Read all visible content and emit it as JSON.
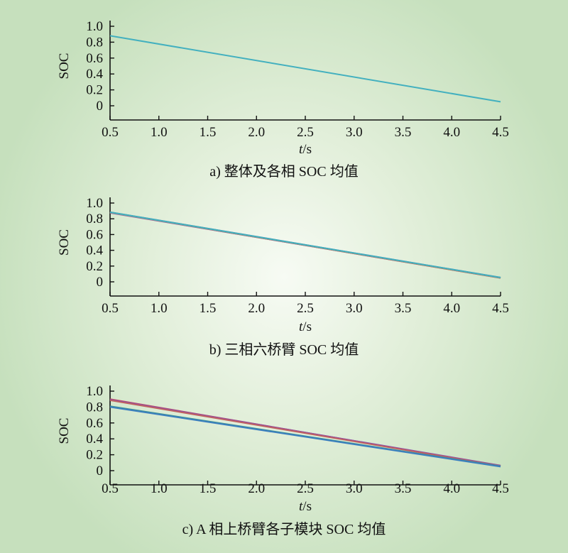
{
  "chart_data": [
    {
      "type": "line",
      "caption": "a) 整体及各相 SOC 均值",
      "xlabel_italic": "t",
      "xlabel_unit": "/s",
      "ylabel": "SOC",
      "xlim": [
        0.5,
        4.5
      ],
      "ylim": [
        0,
        1.0
      ],
      "x_ticks": [
        "0.5",
        "1.0",
        "1.5",
        "2.0",
        "2.5",
        "3.0",
        "3.5",
        "4.0",
        "4.5"
      ],
      "y_ticks": [
        "0",
        "0.2",
        "0.4",
        "0.6",
        "0.8",
        "1.0"
      ],
      "series": [
        {
          "color": "#43b0bf",
          "x": [
            0.5,
            4.5
          ],
          "y": [
            0.88,
            0.05
          ]
        }
      ]
    },
    {
      "type": "line",
      "caption": "b) 三相六桥臂 SOC 均值",
      "xlabel_italic": "t",
      "xlabel_unit": "/s",
      "ylabel": "SOC",
      "xlim": [
        0.5,
        4.5
      ],
      "ylim": [
        0,
        1.0
      ],
      "x_ticks": [
        "0.5",
        "1.0",
        "1.5",
        "2.0",
        "2.5",
        "3.0",
        "3.5",
        "4.0",
        "4.5"
      ],
      "y_ticks": [
        "0",
        "0.2",
        "0.4",
        "0.6",
        "0.8",
        "1.0"
      ],
      "series": [
        {
          "color": "#3c7fbf",
          "x": [
            0.5,
            4.5
          ],
          "y": [
            0.885,
            0.055
          ]
        },
        {
          "color": "#4aa05a",
          "x": [
            0.5,
            4.5
          ],
          "y": [
            0.882,
            0.052
          ]
        },
        {
          "color": "#c04848",
          "x": [
            0.5,
            4.5
          ],
          "y": [
            0.878,
            0.048
          ]
        },
        {
          "color": "#9a5fb0",
          "x": [
            0.5,
            4.5
          ],
          "y": [
            0.875,
            0.05
          ]
        },
        {
          "color": "#c98a3a",
          "x": [
            0.5,
            4.5
          ],
          "y": [
            0.88,
            0.05
          ]
        },
        {
          "color": "#43b0bf",
          "x": [
            0.5,
            4.5
          ],
          "y": [
            0.883,
            0.053
          ]
        }
      ]
    },
    {
      "type": "line",
      "caption": "c) A 相上桥臂各子模块 SOC 均值",
      "xlabel_italic": "t",
      "xlabel_unit": "/s",
      "ylabel": "SOC",
      "xlim": [
        0.5,
        4.5
      ],
      "ylim": [
        0,
        1.0
      ],
      "x_ticks": [
        "0.5",
        "1.0",
        "1.5",
        "2.0",
        "2.5",
        "3.0",
        "3.5",
        "4.0",
        "4.5"
      ],
      "y_ticks": [
        "0",
        "0.2",
        "0.4",
        "0.6",
        "0.8",
        "1.0"
      ],
      "series": [
        {
          "color": "#d84848",
          "x": [
            0.5,
            4.5
          ],
          "y": [
            0.9,
            0.06
          ]
        },
        {
          "color": "#8a4fa8",
          "x": [
            0.5,
            4.5
          ],
          "y": [
            0.895,
            0.065
          ]
        },
        {
          "color": "#c06060",
          "x": [
            0.5,
            4.5
          ],
          "y": [
            0.885,
            0.058
          ]
        },
        {
          "color": "#3a8f9a",
          "x": [
            0.5,
            4.5
          ],
          "y": [
            0.81,
            0.055
          ]
        },
        {
          "color": "#3c7fbf",
          "x": [
            0.5,
            4.5
          ],
          "y": [
            0.8,
            0.05
          ]
        }
      ]
    }
  ]
}
